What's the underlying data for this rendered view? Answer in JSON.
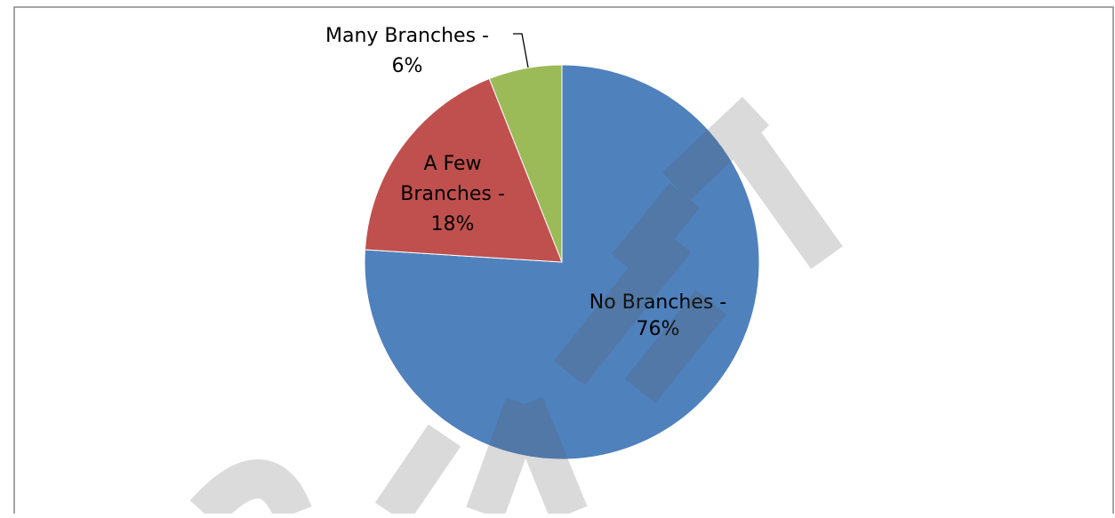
{
  "chart_data": {
    "type": "pie",
    "slices": [
      {
        "label": "No Branches",
        "value": 76,
        "color": "#4F81BD",
        "label_lines": [
          "No Branches -",
          "76%"
        ]
      },
      {
        "label": "A Few Branches",
        "value": 18,
        "color": "#C0504D",
        "label_lines": [
          "A Few",
          "Branches -",
          "18%"
        ]
      },
      {
        "label": "Many Branches",
        "value": 6,
        "color": "#9BBB59",
        "label_lines": [
          "Many Branches -",
          "6%"
        ]
      }
    ],
    "start_angle_deg": 0,
    "direction": "clockwise",
    "legend": "none",
    "title": "",
    "watermark": {
      "text": "DRAFT",
      "color": "#5a5a5a"
    }
  }
}
